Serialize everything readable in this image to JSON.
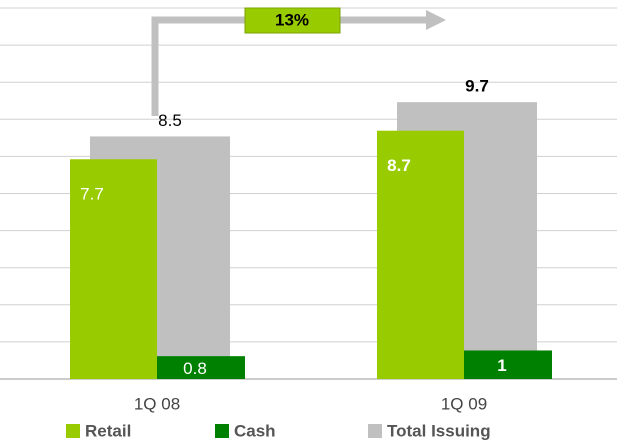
{
  "chart_data": {
    "type": "bar",
    "categories": [
      "1Q 08",
      "1Q 09"
    ],
    "series": [
      {
        "name": "Retail",
        "color": "#99cc00",
        "values": [
          7.7,
          8.7
        ]
      },
      {
        "name": "Cash",
        "color": "#008000",
        "values": [
          0.8,
          1.0
        ]
      },
      {
        "name": "Total Issuing",
        "color": "#c0c0c0",
        "values": [
          8.5,
          9.7
        ]
      }
    ],
    "annotation": "13%",
    "ylim": [
      0,
      13
    ],
    "yticks": [
      0,
      1.3,
      2.6,
      3.9,
      5.2,
      6.5,
      7.8,
      9.1,
      10.4,
      11.7,
      13
    ],
    "grid": true
  }
}
